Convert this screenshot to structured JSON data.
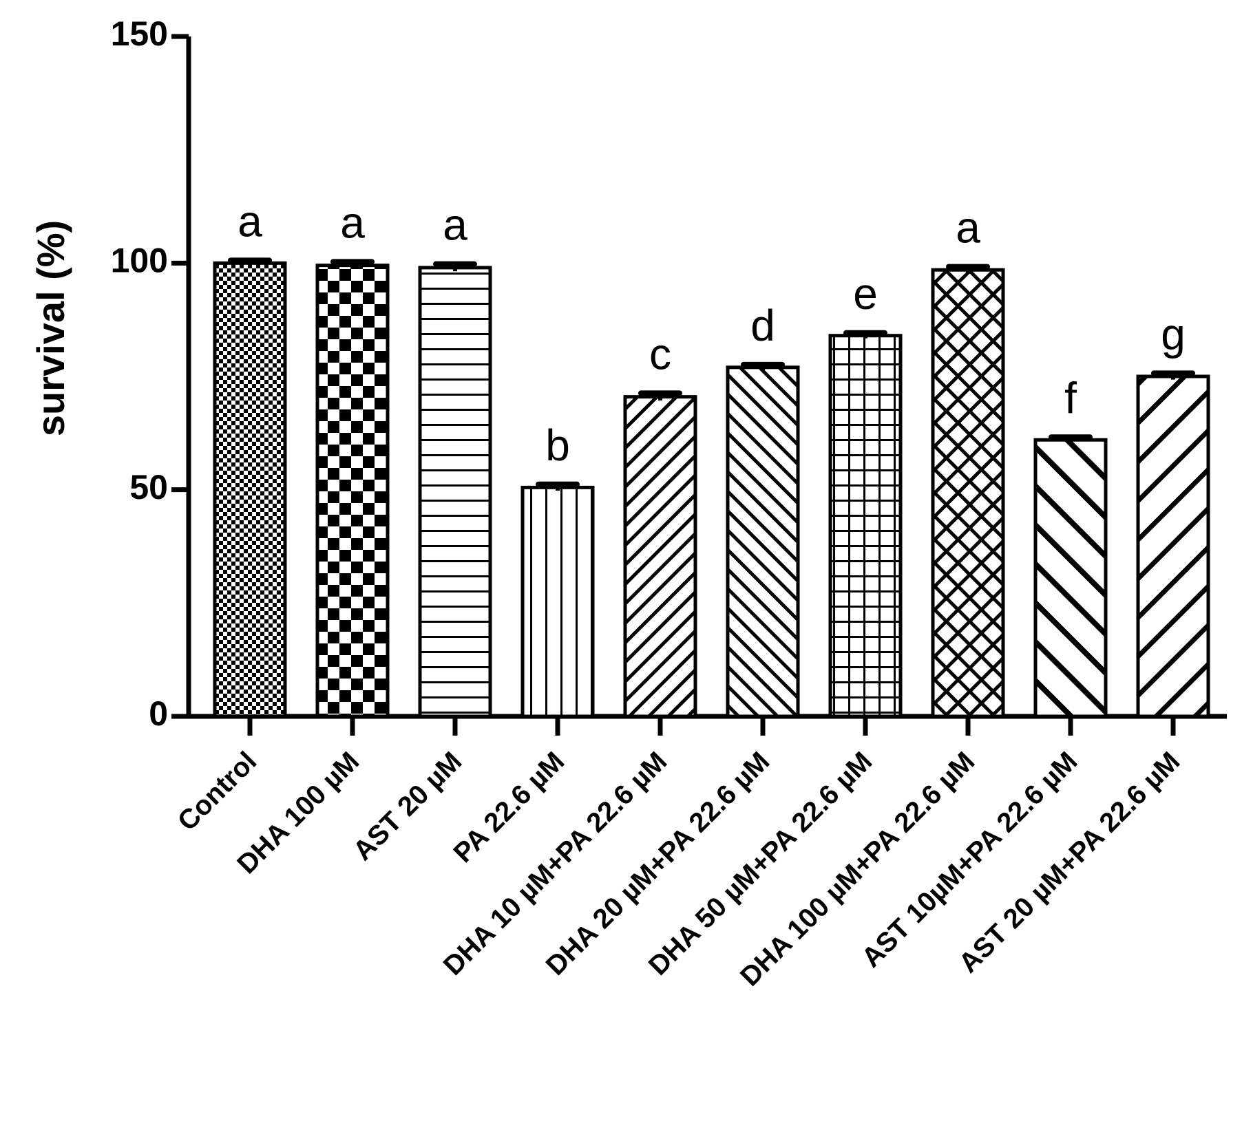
{
  "chart_data": {
    "type": "bar",
    "title": "",
    "xlabel": "",
    "ylabel": "survival (%)",
    "ylim": [
      0,
      150
    ],
    "yticks": [
      "0",
      "50",
      "100",
      "150"
    ],
    "grid": false,
    "categories": [
      "Control",
      "DHA 100 µM",
      "AST 20 µM",
      "PA 22.6 µM",
      "DHA 10 µM+PA 22.6 µM",
      "DHA 20 µM+PA 22.6 µM",
      "DHA 50 µM+PA 22.6 µM",
      "DHA 100 µM+PA 22.6 µM",
      "AST 10µM+PA 22.6 µM",
      "AST 20 µM+PA 22.6 µM"
    ],
    "values": [
      100,
      99.5,
      99,
      50.5,
      70.5,
      77,
      84,
      98.5,
      61,
      75
    ],
    "errors": [
      0.6,
      0.8,
      0.8,
      0.7,
      0.8,
      0.6,
      0.6,
      0.7,
      0.6,
      0.7
    ],
    "significance_labels": [
      "a",
      "a",
      "a",
      "b",
      "c",
      "d",
      "e",
      "a",
      "f",
      "g"
    ],
    "patterns": [
      "fine-checker",
      "checker",
      "horizontal",
      "vertical",
      "diag-up-fine",
      "diag-down",
      "grid",
      "crosshatch",
      "diag-down-wide",
      "diag-up-wide"
    ]
  }
}
